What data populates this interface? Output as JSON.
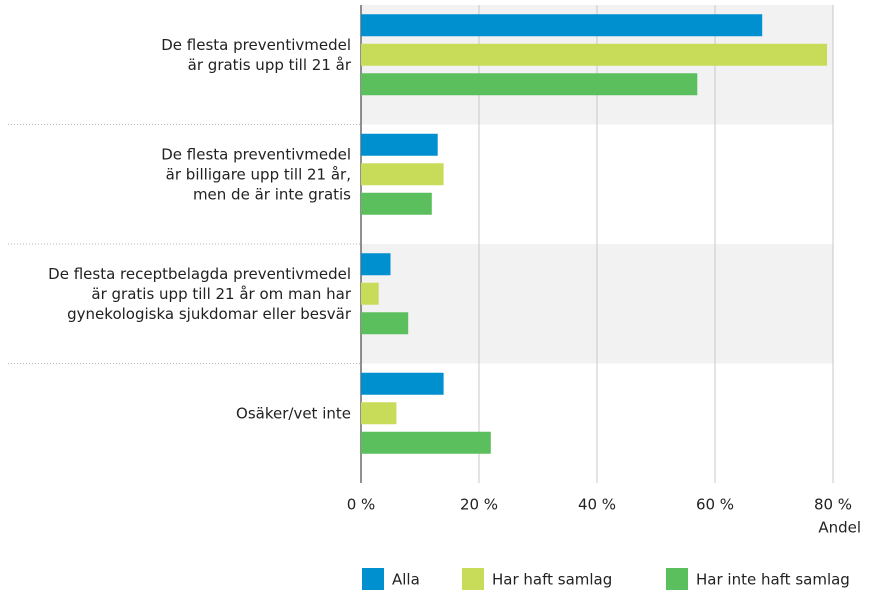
{
  "chart_data": {
    "type": "hbar",
    "categories": [
      "De flesta preventivmedel\när gratis upp till 21 år",
      "De flesta preventivmedel\när billigare upp till 21 år,\nmen de är inte gratis",
      "De flesta receptbelagda preventivmedel\när gratis upp till 21 år om man har\ngynekologiska sjukdomar eller besvär",
      "Osäker/vet inte"
    ],
    "series": [
      {
        "name": "Alla",
        "color": "#0090d0",
        "values": [
          68,
          13,
          5,
          14
        ]
      },
      {
        "name": "Har haft samlag",
        "color": "#c8dc5a",
        "values": [
          79,
          14,
          3,
          6
        ]
      },
      {
        "name": "Har inte haft samlag",
        "color": "#5cbf5e",
        "values": [
          57,
          12,
          8,
          22
        ]
      }
    ],
    "xlim": [
      0,
      80
    ],
    "xticks": [
      {
        "value": 0,
        "label": "0 %"
      },
      {
        "value": 20,
        "label": "20 %"
      },
      {
        "value": 40,
        "label": "40 %"
      },
      {
        "value": 60,
        "label": "60 %"
      },
      {
        "value": 80,
        "label": "80 %"
      }
    ],
    "x_label": "Andel",
    "grid": true
  }
}
